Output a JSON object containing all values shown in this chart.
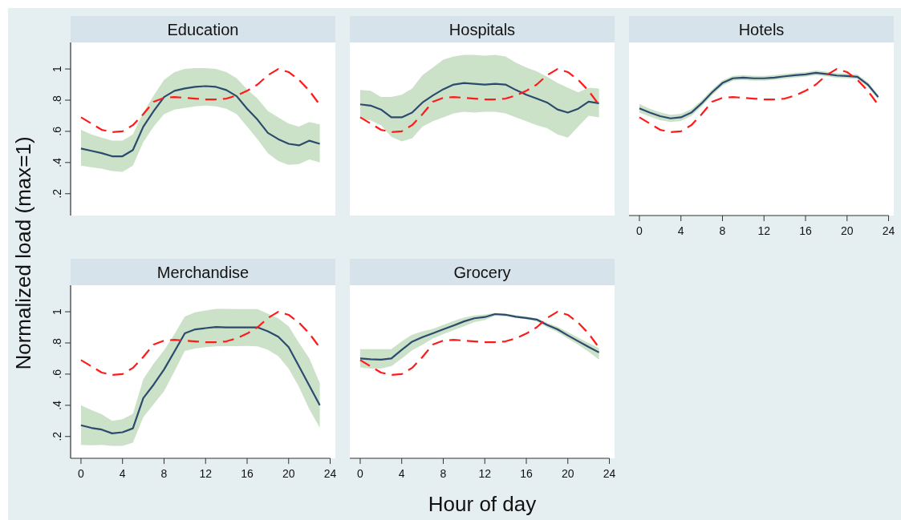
{
  "chart_data": [
    {
      "type": "line",
      "title": "Education",
      "ylabel": "Normalized load (max=1)",
      "x": [
        0,
        1,
        2,
        3,
        4,
        5,
        6,
        7,
        8,
        9,
        10,
        11,
        12,
        13,
        14,
        15,
        16,
        17,
        18,
        19,
        20,
        21,
        22,
        23
      ],
      "xlim": [
        -1,
        24.5
      ],
      "ylim": [
        0.06,
        1.17
      ],
      "yticks": [
        {
          "value": 0.2,
          "label": ".2"
        },
        {
          "value": 0.4,
          "label": ".4"
        },
        {
          "value": 0.6,
          "label": ".6"
        },
        {
          "value": 0.8,
          "label": ".8"
        },
        1
      ],
      "tick_labels": "y",
      "grid": false,
      "series": [
        {
          "color": "#2c4a6e",
          "line_style": "solid",
          "values": [
            0.49,
            0.475,
            0.46,
            0.44,
            0.44,
            0.48,
            0.63,
            0.73,
            0.82,
            0.86,
            0.875,
            0.885,
            0.89,
            0.885,
            0.865,
            0.825,
            0.745,
            0.675,
            0.59,
            0.55,
            0.52,
            0.51,
            0.54,
            0.52
          ],
          "lower": [
            0.38,
            0.37,
            0.36,
            0.345,
            0.34,
            0.38,
            0.53,
            0.63,
            0.71,
            0.74,
            0.75,
            0.76,
            0.765,
            0.76,
            0.745,
            0.71,
            0.63,
            0.55,
            0.46,
            0.41,
            0.385,
            0.39,
            0.42,
            0.4
          ],
          "upper": [
            0.61,
            0.58,
            0.56,
            0.54,
            0.54,
            0.58,
            0.72,
            0.83,
            0.93,
            0.98,
            1.0,
            1.005,
            1.005,
            1.0,
            0.98,
            0.94,
            0.87,
            0.81,
            0.73,
            0.69,
            0.65,
            0.63,
            0.66,
            0.645
          ]
        },
        {
          "color": "#ff1a1a",
          "line_style": "dashed",
          "values": [
            0.69,
            0.65,
            0.61,
            0.595,
            0.6,
            0.64,
            0.71,
            0.79,
            0.815,
            0.82,
            0.815,
            0.81,
            0.805,
            0.805,
            0.81,
            0.83,
            0.86,
            0.9,
            0.96,
            1.0,
            0.98,
            0.93,
            0.86,
            0.77
          ]
        }
      ]
    },
    {
      "type": "line",
      "title": "Hospitals",
      "x": [
        0,
        1,
        2,
        3,
        4,
        5,
        6,
        7,
        8,
        9,
        10,
        11,
        12,
        13,
        14,
        15,
        16,
        17,
        18,
        19,
        20,
        21,
        22,
        23
      ],
      "xlim": [
        -1,
        24.5
      ],
      "ylim": [
        0.06,
        1.17
      ],
      "tick_labels": false,
      "grid": false,
      "series": [
        {
          "color": "#2c4a6e",
          "line_style": "solid",
          "values": [
            0.773,
            0.765,
            0.74,
            0.69,
            0.69,
            0.72,
            0.785,
            0.83,
            0.87,
            0.9,
            0.91,
            0.905,
            0.9,
            0.905,
            0.9,
            0.865,
            0.835,
            0.81,
            0.785,
            0.74,
            0.72,
            0.745,
            0.79,
            0.78
          ],
          "lower": [
            0.68,
            0.67,
            0.64,
            0.565,
            0.535,
            0.555,
            0.63,
            0.665,
            0.69,
            0.715,
            0.725,
            0.72,
            0.725,
            0.725,
            0.715,
            0.69,
            0.665,
            0.64,
            0.62,
            0.58,
            0.56,
            0.63,
            0.7,
            0.69
          ],
          "upper": [
            0.865,
            0.86,
            0.82,
            0.82,
            0.835,
            0.875,
            0.96,
            1.01,
            1.06,
            1.08,
            1.09,
            1.09,
            1.085,
            1.09,
            1.08,
            1.04,
            1.01,
            0.985,
            0.95,
            0.91,
            0.88,
            0.85,
            0.88,
            0.875
          ]
        },
        {
          "color": "#ff1a1a",
          "line_style": "dashed",
          "values": [
            0.69,
            0.65,
            0.61,
            0.595,
            0.6,
            0.64,
            0.71,
            0.79,
            0.815,
            0.82,
            0.815,
            0.81,
            0.805,
            0.805,
            0.81,
            0.83,
            0.86,
            0.9,
            0.96,
            1.0,
            0.98,
            0.93,
            0.86,
            0.77
          ]
        }
      ]
    },
    {
      "type": "line",
      "title": "Hotels",
      "x": [
        0,
        1,
        2,
        3,
        4,
        5,
        6,
        7,
        8,
        9,
        10,
        11,
        12,
        13,
        14,
        15,
        16,
        17,
        18,
        19,
        20,
        21,
        22,
        23
      ],
      "xlim": [
        -1,
        24.5
      ],
      "ylim": [
        0.06,
        1.17
      ],
      "xticks": [
        0,
        4,
        8,
        12,
        16,
        20,
        24
      ],
      "tick_labels": "x",
      "grid": false,
      "series": [
        {
          "color": "#2c4a6e",
          "line_style": "solid",
          "values": [
            0.747,
            0.72,
            0.697,
            0.683,
            0.69,
            0.72,
            0.78,
            0.85,
            0.91,
            0.94,
            0.945,
            0.94,
            0.94,
            0.945,
            0.953,
            0.96,
            0.965,
            0.975,
            0.968,
            0.958,
            0.955,
            0.95,
            0.9,
            0.82
          ],
          "lower": [
            0.72,
            0.695,
            0.672,
            0.66,
            0.667,
            0.698,
            0.76,
            0.832,
            0.893,
            0.925,
            0.93,
            0.925,
            0.925,
            0.93,
            0.938,
            0.945,
            0.95,
            0.96,
            0.953,
            0.943,
            0.94,
            0.935,
            0.885,
            0.805
          ],
          "upper": [
            0.775,
            0.745,
            0.722,
            0.706,
            0.713,
            0.742,
            0.8,
            0.868,
            0.927,
            0.955,
            0.96,
            0.955,
            0.955,
            0.96,
            0.968,
            0.975,
            0.98,
            0.99,
            0.983,
            0.973,
            0.97,
            0.965,
            0.915,
            0.835
          ]
        },
        {
          "color": "#ff1a1a",
          "line_style": "dashed",
          "values": [
            0.69,
            0.65,
            0.61,
            0.595,
            0.6,
            0.64,
            0.71,
            0.79,
            0.815,
            0.82,
            0.815,
            0.81,
            0.805,
            0.805,
            0.81,
            0.83,
            0.86,
            0.9,
            0.96,
            1.0,
            0.98,
            0.93,
            0.86,
            0.77
          ]
        }
      ]
    },
    {
      "type": "line",
      "title": "Merchandise",
      "x": [
        0,
        1,
        2,
        3,
        4,
        5,
        6,
        7,
        8,
        9,
        10,
        11,
        12,
        13,
        14,
        15,
        16,
        17,
        18,
        19,
        20,
        21,
        22,
        23
      ],
      "xlim": [
        -1,
        24.5
      ],
      "ylim": [
        0.06,
        1.17
      ],
      "xticks": [
        0,
        4,
        8,
        12,
        16,
        20,
        24
      ],
      "yticks": [
        {
          "value": 0.2,
          "label": ".2"
        },
        {
          "value": 0.4,
          "label": ".4"
        },
        {
          "value": 0.6,
          "label": ".6"
        },
        {
          "value": 0.8,
          "label": ".8"
        },
        1
      ],
      "grid": false,
      "series": [
        {
          "color": "#2c4a6e",
          "line_style": "solid",
          "values": [
            0.272,
            0.255,
            0.244,
            0.22,
            0.227,
            0.252,
            0.446,
            0.533,
            0.63,
            0.745,
            0.862,
            0.887,
            0.895,
            0.902,
            0.9,
            0.9,
            0.9,
            0.9,
            0.874,
            0.84,
            0.773,
            0.65,
            0.525,
            0.4
          ],
          "lower": [
            0.146,
            0.143,
            0.146,
            0.14,
            0.14,
            0.16,
            0.323,
            0.407,
            0.49,
            0.618,
            0.749,
            0.764,
            0.773,
            0.778,
            0.78,
            0.78,
            0.781,
            0.778,
            0.756,
            0.715,
            0.635,
            0.517,
            0.373,
            0.256
          ],
          "upper": [
            0.4,
            0.37,
            0.343,
            0.3,
            0.31,
            0.345,
            0.567,
            0.668,
            0.752,
            0.857,
            0.97,
            0.997,
            1.008,
            1.018,
            1.018,
            1.017,
            1.017,
            1.017,
            0.988,
            0.958,
            0.907,
            0.8,
            0.7,
            0.542
          ]
        },
        {
          "color": "#ff1a1a",
          "line_style": "dashed",
          "values": [
            0.69,
            0.65,
            0.61,
            0.595,
            0.6,
            0.64,
            0.71,
            0.79,
            0.815,
            0.82,
            0.815,
            0.81,
            0.805,
            0.805,
            0.81,
            0.83,
            0.86,
            0.9,
            0.96,
            1.0,
            0.98,
            0.93,
            0.86,
            0.77
          ]
        }
      ]
    },
    {
      "type": "line",
      "title": "Grocery",
      "xlabel": "Hour of day",
      "x": [
        0,
        1,
        2,
        3,
        4,
        5,
        6,
        7,
        8,
        9,
        10,
        11,
        12,
        13,
        14,
        15,
        16,
        17,
        18,
        19,
        20,
        21,
        22,
        23
      ],
      "xlim": [
        -1,
        24.5
      ],
      "ylim": [
        0.06,
        1.17
      ],
      "xticks": [
        0,
        4,
        8,
        12,
        16,
        20,
        24
      ],
      "tick_labels": "x",
      "grid": false,
      "series": [
        {
          "color": "#2c4a6e",
          "line_style": "solid",
          "values": [
            0.7,
            0.695,
            0.693,
            0.7,
            0.756,
            0.808,
            0.837,
            0.862,
            0.887,
            0.912,
            0.938,
            0.958,
            0.966,
            0.985,
            0.981,
            0.968,
            0.96,
            0.95,
            0.916,
            0.887,
            0.848,
            0.811,
            0.774,
            0.739
          ],
          "lower": [
            0.643,
            0.635,
            0.635,
            0.651,
            0.7,
            0.752,
            0.789,
            0.828,
            0.857,
            0.882,
            0.907,
            0.933,
            0.946,
            0.975,
            0.971,
            0.96,
            0.951,
            0.938,
            0.9,
            0.87,
            0.828,
            0.789,
            0.744,
            0.693
          ],
          "upper": [
            0.76,
            0.76,
            0.76,
            0.76,
            0.81,
            0.853,
            0.874,
            0.89,
            0.916,
            0.941,
            0.963,
            0.976,
            0.983,
            0.993,
            0.988,
            0.978,
            0.968,
            0.958,
            0.929,
            0.904,
            0.87,
            0.833,
            0.8,
            0.766
          ]
        },
        {
          "color": "#ff1a1a",
          "line_style": "dashed",
          "values": [
            0.69,
            0.65,
            0.61,
            0.595,
            0.6,
            0.64,
            0.71,
            0.79,
            0.815,
            0.82,
            0.815,
            0.81,
            0.805,
            0.805,
            0.81,
            0.83,
            0.86,
            0.9,
            0.96,
            1.0,
            0.98,
            0.93,
            0.86,
            0.77
          ]
        }
      ]
    }
  ]
}
